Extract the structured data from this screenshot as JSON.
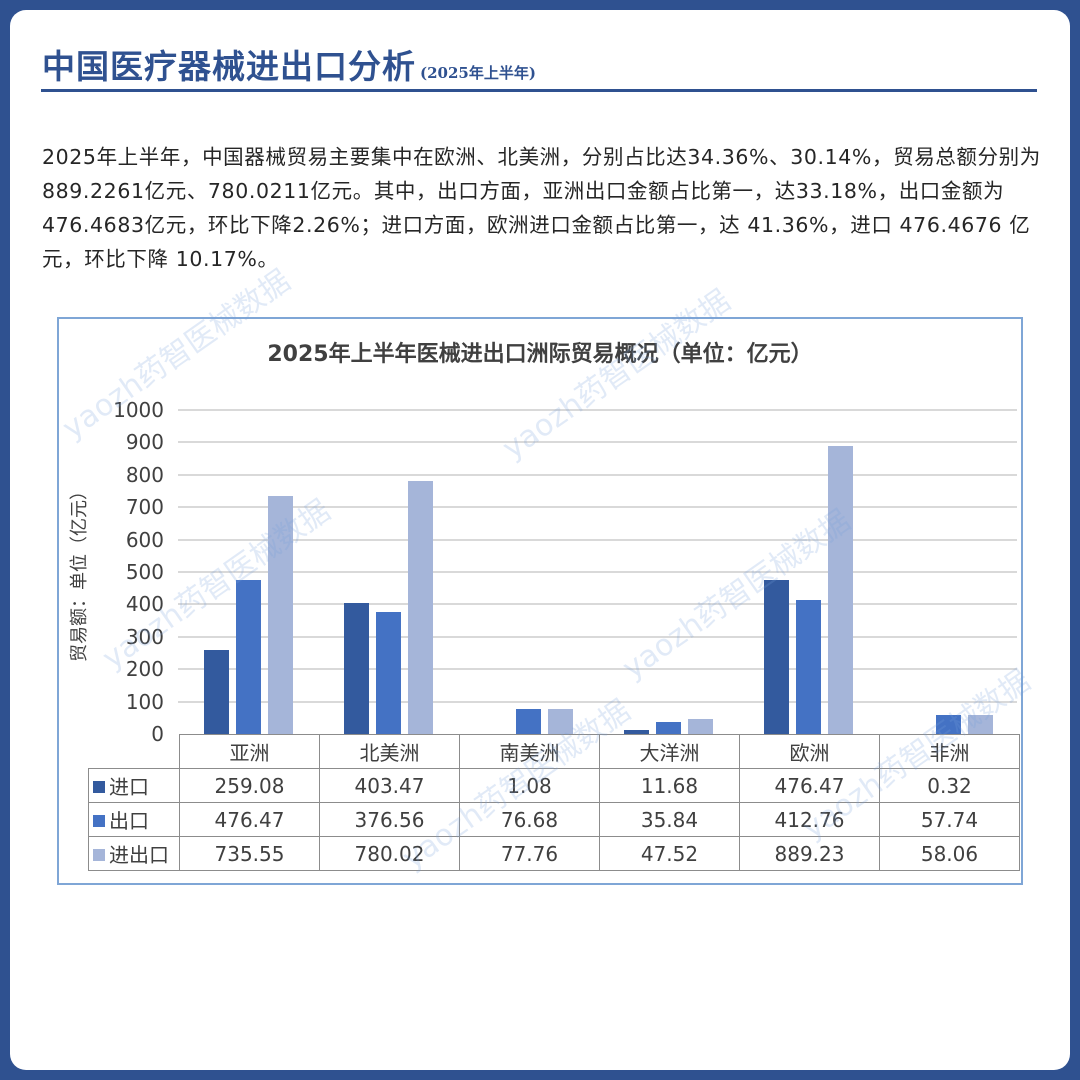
{
  "header": {
    "title": "中国医疗器械进出口分析",
    "subtitle": "(2025年上半年)"
  },
  "intro": {
    "text": "2025年上半年，中国器械贸易主要集中在欧洲、北美洲，分别占比达34.36%、30.14%，贸易总额分别为889.2261亿元、780.0211亿元。其中，出口方面，亚洲出口金额占比第一，达33.18%，出口金额为476.4683亿元，环比下降2.26%；进口方面，欧洲进口金额占比第一，达 41.36%，进口 476.4676 亿元，环比下降 10.17%。"
  },
  "watermark": "yaozh药智医械数据",
  "colors": {
    "import": "#335a9e",
    "export": "#4472c4",
    "total": "#a5b5d9",
    "frame": "#2f5190"
  },
  "chart_data": {
    "type": "bar",
    "title": "2025年上半年医械进出口洲际贸易概况（单位：亿元）",
    "xlabel": "",
    "ylabel": "贸易额：单位（亿元）",
    "ylim": [
      0,
      1000
    ],
    "yticks": [
      "1000",
      "900",
      "800",
      "700",
      "600",
      "500",
      "400",
      "300",
      "200",
      "100",
      "0"
    ],
    "grid": true,
    "legend_position": "data-table",
    "categories": [
      "亚洲",
      "北美洲",
      "南美洲",
      "大洋洲",
      "欧洲",
      "非洲"
    ],
    "series": [
      {
        "name": "进口",
        "values": [
          259.08,
          403.47,
          1.08,
          11.68,
          476.47,
          0.32
        ]
      },
      {
        "name": "出口",
        "values": [
          476.47,
          376.56,
          76.68,
          35.84,
          412.76,
          57.74
        ]
      },
      {
        "name": "进出口",
        "values": [
          735.55,
          780.02,
          77.76,
          47.52,
          889.23,
          58.06
        ]
      }
    ],
    "table": {
      "header": [
        "亚洲",
        "北美洲",
        "南美洲",
        "大洋洲",
        "欧洲",
        "非洲"
      ],
      "rows": [
        {
          "label": "进口",
          "cells": [
            "259.08",
            "403.47",
            "1.08",
            "11.68",
            "476.47",
            "0.32"
          ]
        },
        {
          "label": "出口",
          "cells": [
            "476.47",
            "376.56",
            "76.68",
            "35.84",
            "412.76",
            "57.74"
          ]
        },
        {
          "label": "进出口",
          "cells": [
            "735.55",
            "780.02",
            "77.76",
            "47.52",
            "889.23",
            "58.06"
          ]
        }
      ]
    }
  }
}
